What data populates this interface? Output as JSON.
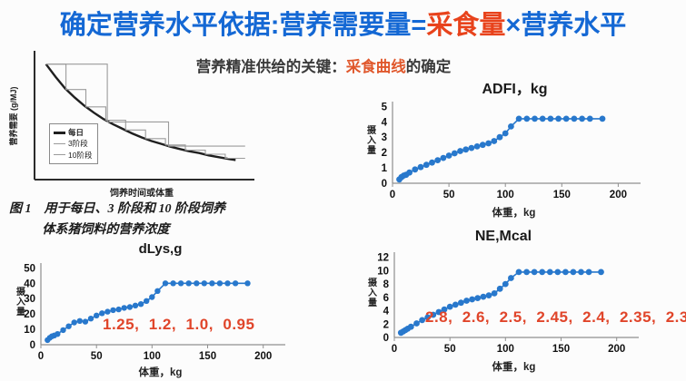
{
  "title": {
    "part1": "确定营养水平依据:营养需要量=",
    "part2": "采食量",
    "part3": "×营养水平"
  },
  "subtitle": {
    "part1": "营养精准供给的关键：",
    "part2": "采食曲线",
    "part3": "的确定"
  },
  "figure_caption": {
    "line1": "图 1　用于每日、3 阶段和 10 阶段饲养",
    "line2": "体系猪饲料的营养浓度"
  },
  "colors": {
    "title_blue": "#1468d4",
    "title_red": "#e8431c",
    "subtitle_orange": "#e0572b",
    "annotation_orange": "#e0452a",
    "marker_blue": "#2878cc",
    "daily_line_black": "#1f1f1f",
    "stage_line_gray": "#9b9b9b",
    "axis_gray": "#8f8f8f"
  },
  "chart_data": [
    {
      "id": "concept",
      "type": "line",
      "title": "",
      "xlabel": "饲养时间或体重",
      "ylabel": "营养需要 (g/MJ)",
      "xlim": [
        0,
        112
      ],
      "ylim": [
        0,
        110
      ],
      "grid": false,
      "legend": [
        {
          "label": "每日",
          "color": "#1f1f1f",
          "thickness": 3
        },
        {
          "label": "3阶段",
          "color": "#9b9b9b",
          "thickness": 1
        },
        {
          "label": "10阶段",
          "color": "#9b9b9b",
          "thickness": 1
        }
      ],
      "series": [
        {
          "name": "每日",
          "color": "#1f1f1f",
          "width": 2.4,
          "points": [
            [
              6,
              100
            ],
            [
              11,
              89
            ],
            [
              16,
              79
            ],
            [
              21,
              71
            ],
            [
              26,
              64
            ],
            [
              31,
              58
            ],
            [
              36,
              52.5
            ],
            [
              41,
              48
            ],
            [
              46,
              44
            ],
            [
              51,
              40
            ],
            [
              56,
              36.5
            ],
            [
              61,
              33.5
            ],
            [
              66,
              31
            ],
            [
              71,
              28.5
            ],
            [
              76,
              26.5
            ],
            [
              81,
              24.5
            ],
            [
              86,
              23
            ],
            [
              91,
              21
            ],
            [
              96,
              19.5
            ],
            [
              101,
              18
            ],
            [
              105,
              17
            ]
          ]
        },
        {
          "name": "3阶段",
          "color": "#9b9b9b",
          "width": 1.1,
          "points": [
            [
              6,
              100
            ],
            [
              38,
              100
            ],
            [
              38,
              50
            ],
            [
              70,
              50
            ],
            [
              70,
              29
            ],
            [
              110,
              29
            ]
          ]
        },
        {
          "name": "10阶段",
          "color": "#9b9b9b",
          "width": 1.1,
          "points": [
            [
              6,
              100
            ],
            [
              16.4,
              100
            ],
            [
              16.4,
              78
            ],
            [
              26.8,
              78
            ],
            [
              26.8,
              63
            ],
            [
              37.2,
              63
            ],
            [
              37.2,
              51.5
            ],
            [
              47.6,
              51.5
            ],
            [
              47.6,
              43
            ],
            [
              58,
              43
            ],
            [
              58,
              35.5
            ],
            [
              68.4,
              35.5
            ],
            [
              68.4,
              30
            ],
            [
              78.8,
              30
            ],
            [
              78.8,
              25.5
            ],
            [
              89.2,
              25.5
            ],
            [
              89.2,
              22
            ],
            [
              99.6,
              22
            ],
            [
              99.6,
              18.5
            ],
            [
              110,
              18.5
            ]
          ]
        }
      ]
    },
    {
      "id": "lys",
      "type": "scatter",
      "title": "dLys,g",
      "xlabel": "体重，kg",
      "ylabel": "摄入量",
      "annotation": "1.25,  1.2,  1.0,  0.95",
      "xlim": [
        0,
        215
      ],
      "ylim": [
        0,
        52
      ],
      "xticks": [
        0,
        50,
        100,
        150,
        200
      ],
      "yticks": [
        0,
        10,
        20,
        30,
        40,
        50
      ],
      "grid": false,
      "series": [
        {
          "name": "dLys",
          "color": "#2878cc",
          "width": 1.6,
          "marker_r": 3.2,
          "x": [
            6,
            8,
            10,
            12,
            15,
            20,
            25,
            30,
            35,
            40,
            45,
            50,
            55,
            60,
            65,
            70,
            75,
            80,
            85,
            90,
            95,
            100,
            105,
            112,
            119,
            126,
            133,
            140,
            147,
            154,
            161,
            168,
            175,
            186
          ],
          "values": [
            3,
            4.5,
            5.5,
            6,
            7,
            9.5,
            12,
            14.5,
            15.5,
            15,
            17,
            19,
            20.5,
            21.5,
            22.5,
            23,
            24,
            24.5,
            25.5,
            26.5,
            28.5,
            31,
            35,
            40,
            40,
            40,
            40,
            40,
            40,
            40,
            40,
            40,
            40,
            40
          ]
        }
      ]
    },
    {
      "id": "adfi",
      "type": "scatter",
      "title": "ADFI，kg",
      "xlabel": "体重，kg",
      "ylabel": "摄入量",
      "xlim": [
        0,
        215
      ],
      "ylim": [
        0,
        5.2
      ],
      "xticks": [
        0,
        50,
        100,
        150,
        200
      ],
      "yticks": [
        0,
        1,
        2,
        3,
        4,
        5
      ],
      "grid": false,
      "series": [
        {
          "name": "ADFI",
          "color": "#2878cc",
          "width": 1.6,
          "marker_r": 3.4,
          "x": [
            6,
            8,
            10,
            12,
            15,
            20,
            25,
            30,
            35,
            40,
            45,
            50,
            55,
            60,
            65,
            70,
            75,
            80,
            85,
            90,
            95,
            100,
            105,
            112,
            119,
            126,
            133,
            140,
            147,
            154,
            161,
            168,
            175,
            186
          ],
          "values": [
            0.25,
            0.4,
            0.5,
            0.55,
            0.7,
            0.9,
            1.05,
            1.2,
            1.35,
            1.5,
            1.65,
            1.8,
            1.95,
            2.1,
            2.2,
            2.3,
            2.4,
            2.5,
            2.6,
            2.75,
            3.0,
            3.25,
            3.7,
            4.2,
            4.2,
            4.2,
            4.2,
            4.2,
            4.2,
            4.2,
            4.2,
            4.2,
            4.2,
            4.2
          ]
        }
      ]
    },
    {
      "id": "ne",
      "type": "scatter",
      "title": "NE,Mcal",
      "xlabel": "体重，kg",
      "ylabel": "摄入量",
      "annotation": "2.8,  2.6,  2.5,  2.45,  2.4,  2.35,  2.3",
      "xlim": [
        0,
        215
      ],
      "ylim": [
        0,
        12.5
      ],
      "xticks": [
        0,
        50,
        100,
        150,
        200
      ],
      "yticks": [
        0,
        2,
        4,
        6,
        8,
        10,
        12
      ],
      "grid": false,
      "series": [
        {
          "name": "NE",
          "color": "#2878cc",
          "width": 1.6,
          "marker_r": 3.4,
          "x": [
            6,
            8,
            10,
            12,
            15,
            20,
            25,
            30,
            35,
            40,
            45,
            50,
            55,
            60,
            65,
            70,
            75,
            80,
            85,
            90,
            95,
            100,
            105,
            112,
            119,
            126,
            133,
            140,
            147,
            154,
            161,
            168,
            175,
            186
          ],
          "values": [
            0.7,
            0.9,
            1.1,
            1.3,
            1.6,
            2.1,
            2.6,
            3.0,
            3.4,
            3.8,
            4.2,
            4.6,
            4.9,
            5.2,
            5.5,
            5.7,
            5.9,
            6.1,
            6.3,
            6.6,
            7.3,
            8.0,
            8.9,
            9.8,
            9.8,
            9.8,
            9.8,
            9.8,
            9.8,
            9.8,
            9.8,
            9.8,
            9.8,
            9.8
          ]
        }
      ]
    }
  ]
}
